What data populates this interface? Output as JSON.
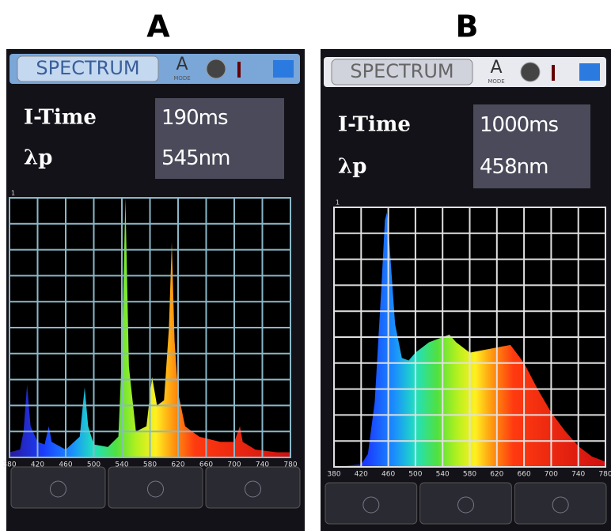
{
  "chart_data": [
    {
      "type": "area",
      "title": "A",
      "header": "SPECTRUM",
      "mode": "A",
      "mode_caption": "MODE",
      "fields": [
        {
          "label": "I-Time",
          "value": "190ms"
        },
        {
          "label": "λp",
          "value": "545nm"
        }
      ],
      "x": [
        380,
        395,
        400,
        405,
        410,
        420,
        430,
        436,
        440,
        460,
        480,
        487,
        492,
        500,
        520,
        535,
        540,
        545,
        550,
        560,
        575,
        583,
        590,
        600,
        607,
        611,
        615,
        620,
        630,
        650,
        680,
        700,
        708,
        712,
        730,
        760,
        780
      ],
      "values": [
        0.02,
        0.03,
        0.1,
        0.28,
        0.12,
        0.06,
        0.05,
        0.12,
        0.06,
        0.03,
        0.08,
        0.27,
        0.12,
        0.05,
        0.04,
        0.08,
        0.4,
        1.0,
        0.35,
        0.1,
        0.12,
        0.31,
        0.2,
        0.22,
        0.5,
        0.83,
        0.45,
        0.25,
        0.12,
        0.08,
        0.06,
        0.06,
        0.12,
        0.06,
        0.03,
        0.02,
        0.02
      ],
      "xlim": [
        380,
        780
      ],
      "ylim": [
        0,
        1
      ],
      "xticks": [
        380,
        420,
        460,
        500,
        540,
        580,
        620,
        660,
        700,
        740,
        780
      ],
      "yticks": [
        1
      ],
      "grid": true
    },
    {
      "type": "area",
      "title": "B",
      "header": "SPECTRUM",
      "mode": "A",
      "mode_caption": "MODE",
      "fields": [
        {
          "label": "I-Time",
          "value": "1000ms"
        },
        {
          "label": "λp",
          "value": "458nm"
        }
      ],
      "x": [
        380,
        420,
        430,
        440,
        450,
        455,
        458,
        462,
        470,
        480,
        490,
        500,
        520,
        540,
        550,
        560,
        580,
        600,
        620,
        640,
        660,
        680,
        700,
        720,
        740,
        760,
        780
      ],
      "values": [
        0,
        0.01,
        0.05,
        0.25,
        0.7,
        0.95,
        0.98,
        0.85,
        0.55,
        0.42,
        0.41,
        0.44,
        0.48,
        0.5,
        0.51,
        0.48,
        0.44,
        0.45,
        0.46,
        0.47,
        0.4,
        0.3,
        0.21,
        0.14,
        0.08,
        0.04,
        0.02
      ],
      "xlim": [
        380,
        780
      ],
      "ylim": [
        0,
        1
      ],
      "xticks": [
        380,
        420,
        460,
        500,
        540,
        580,
        620,
        660,
        700,
        740,
        780
      ],
      "yticks": [
        1
      ],
      "grid": true
    }
  ]
}
